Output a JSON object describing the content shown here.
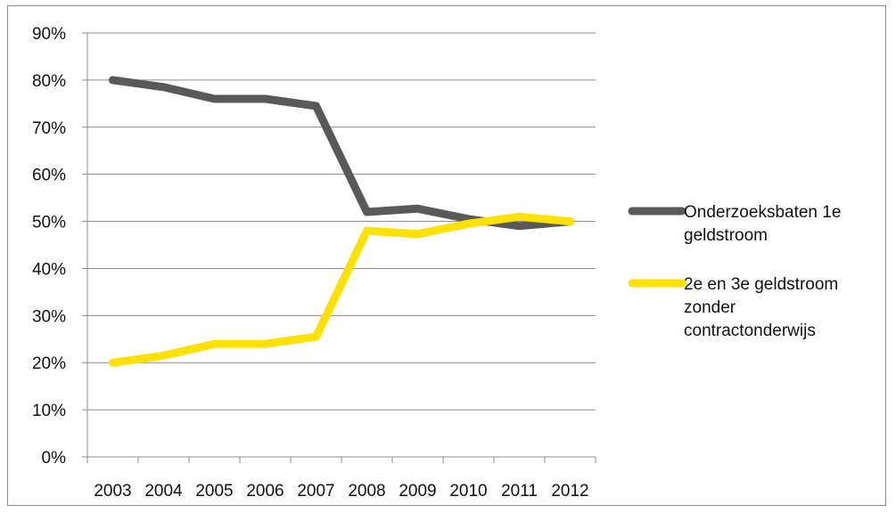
{
  "chart_data": {
    "type": "line",
    "title": "",
    "xlabel": "",
    "ylabel": "",
    "x": [
      "2003",
      "2004",
      "2005",
      "2006",
      "2007",
      "2008",
      "2009",
      "2010",
      "2011",
      "2012"
    ],
    "ylim": [
      0,
      90
    ],
    "yticks": [
      0,
      10,
      20,
      30,
      40,
      50,
      60,
      70,
      80,
      90
    ],
    "ytick_labels": [
      "0%",
      "10%",
      "20%",
      "30%",
      "40%",
      "50%",
      "60%",
      "70%",
      "80%",
      "90%"
    ],
    "grid": true,
    "legend": "right",
    "series": [
      {
        "name": "Onderzoeksbaten 1e geldstroom",
        "legend_lines": [
          "Onderzoeksbaten 1e",
          "geldstroom"
        ],
        "color": "#595959",
        "values": [
          80,
          78.5,
          76,
          76,
          74.5,
          52,
          52.7,
          50.5,
          49,
          50
        ]
      },
      {
        "name": "2e en 3e geldstroom zonder contractonderwijs",
        "legend_lines": [
          "2e en 3e geldstroom",
          "zonder",
          "contractonderwijs"
        ],
        "color": "#ffe100",
        "values": [
          20,
          21.5,
          24,
          24,
          25.5,
          48,
          47.3,
          49.5,
          51,
          50
        ]
      }
    ]
  }
}
